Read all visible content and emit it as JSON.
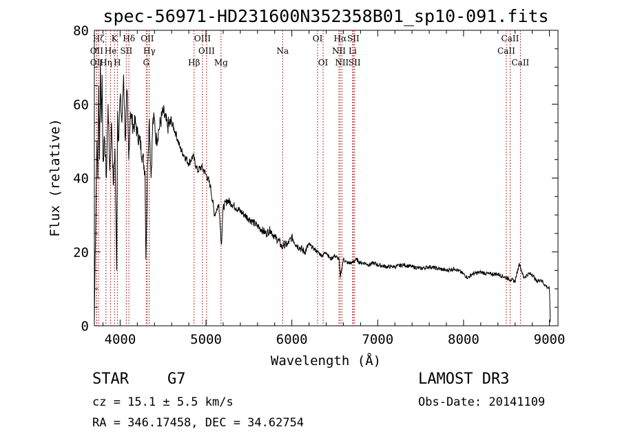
{
  "chart_data": {
    "type": "line",
    "title": "spec-56971-HD231600N352358B01_sp10-091.fits",
    "xlabel": "Wavelength (Å)",
    "ylabel": "Flux (relative)",
    "xlim": [
      3700,
      9100
    ],
    "ylim": [
      0,
      80
    ],
    "x_ticks": [
      4000,
      5000,
      6000,
      7000,
      8000,
      9000
    ],
    "y_ticks": [
      0,
      20,
      40,
      60,
      80
    ],
    "series": [
      {
        "name": "spectrum",
        "x": [
          3700,
          3710,
          3720,
          3730,
          3740,
          3750,
          3760,
          3770,
          3780,
          3790,
          3800,
          3820,
          3840,
          3860,
          3880,
          3900,
          3920,
          3940,
          3960,
          3970,
          3980,
          4000,
          4020,
          4040,
          4060,
          4080,
          4100,
          4120,
          4150,
          4180,
          4200,
          4230,
          4260,
          4290,
          4300,
          4320,
          4340,
          4360,
          4380,
          4400,
          4420,
          4450,
          4500,
          4550,
          4600,
          4650,
          4700,
          4750,
          4800,
          4850,
          4900,
          4950,
          5000,
          5050,
          5100,
          5150,
          5180,
          5200,
          5250,
          5300,
          5350,
          5400,
          5450,
          5500,
          5550,
          5600,
          5650,
          5700,
          5750,
          5800,
          5850,
          5890,
          5900,
          5950,
          6000,
          6050,
          6100,
          6150,
          6200,
          6250,
          6300,
          6350,
          6400,
          6450,
          6500,
          6550,
          6563,
          6600,
          6650,
          6700,
          6750,
          6800,
          6850,
          6900,
          6950,
          7000,
          7100,
          7200,
          7300,
          7400,
          7500,
          7600,
          7700,
          7800,
          7900,
          8000,
          8050,
          8100,
          8200,
          8300,
          8400,
          8500,
          8550,
          8600,
          8650,
          8700,
          8750,
          8800,
          8850,
          8900,
          8950,
          9000,
          9010
        ],
        "y": [
          1,
          20,
          35,
          50,
          40,
          65,
          45,
          72,
          55,
          68,
          45,
          50,
          40,
          60,
          42,
          55,
          38,
          48,
          15,
          58,
          50,
          62,
          55,
          68,
          50,
          64,
          45,
          58,
          54,
          55,
          52,
          50,
          46,
          42,
          18,
          44,
          56,
          40,
          55,
          56,
          50,
          53,
          58,
          54,
          55,
          52,
          48,
          46,
          44,
          46,
          42,
          43,
          41,
          38,
          30,
          33,
          22,
          32,
          34,
          33,
          32,
          31,
          30,
          29,
          28,
          27,
          26,
          25,
          26,
          24,
          23,
          21,
          22,
          22,
          24,
          22,
          21,
          20,
          22,
          21,
          20,
          19,
          20,
          18,
          19,
          18,
          13,
          18,
          17,
          17,
          18,
          17,
          17,
          16.5,
          17,
          16.5,
          16,
          16,
          16.5,
          16,
          15.5,
          16,
          15.5,
          15,
          15.5,
          14,
          13,
          14,
          14.5,
          14,
          14,
          13,
          12.5,
          12,
          17,
          13,
          14,
          14,
          12,
          12.5,
          11,
          10,
          1
        ]
      }
    ],
    "line_markers": [
      {
        "label": "Hζ",
        "wl": 3750,
        "row": 1
      },
      {
        "label": "OII",
        "wl": 3727,
        "row": 2
      },
      {
        "label": "OII",
        "wl": 3727,
        "row": 3
      },
      {
        "label": "K",
        "wl": 3934,
        "row": 1
      },
      {
        "label": "He",
        "wl": 3889,
        "row": 2
      },
      {
        "label": "Hη",
        "wl": 3835,
        "row": 3
      },
      {
        "label": "Hδ",
        "wl": 4102,
        "row": 1
      },
      {
        "label": "SII",
        "wl": 4072,
        "row": 2
      },
      {
        "label": "H",
        "wl": 3968,
        "row": 3
      },
      {
        "label": "OII",
        "wl": 4317,
        "row": 1
      },
      {
        "label": "Hγ",
        "wl": 4340,
        "row": 2
      },
      {
        "label": "G",
        "wl": 4304,
        "row": 3
      },
      {
        "label": "OIII",
        "wl": 4959,
        "row": 1
      },
      {
        "label": "OIII",
        "wl": 5007,
        "row": 2
      },
      {
        "label": "Hβ",
        "wl": 4861,
        "row": 3
      },
      {
        "label": "Mg",
        "wl": 5175,
        "row": 3
      },
      {
        "label": "Na",
        "wl": 5893,
        "row": 2
      },
      {
        "label": "OI",
        "wl": 6300,
        "row": 1
      },
      {
        "label": "OI",
        "wl": 6364,
        "row": 3
      },
      {
        "label": "Hα",
        "wl": 6563,
        "row": 1
      },
      {
        "label": "NII",
        "wl": 6548,
        "row": 2
      },
      {
        "label": "NII",
        "wl": 6583,
        "row": 3
      },
      {
        "label": "SII",
        "wl": 6716,
        "row": 1
      },
      {
        "label": "Li",
        "wl": 6708,
        "row": 2
      },
      {
        "label": "SII",
        "wl": 6731,
        "row": 3
      },
      {
        "label": "CaII",
        "wl": 8542,
        "row": 1
      },
      {
        "label": "CaII",
        "wl": 8498,
        "row": 2
      },
      {
        "label": "CaII",
        "wl": 8662,
        "row": 3
      }
    ]
  },
  "info": {
    "class": "STAR",
    "subclass": "G7",
    "survey": "LAMOST DR3",
    "cz": "cz = 15.1 ± 5.5 km/s",
    "obs_date": "Obs-Date: 20141109",
    "coords": "RA = 346.17458, DEC =  34.62754"
  }
}
